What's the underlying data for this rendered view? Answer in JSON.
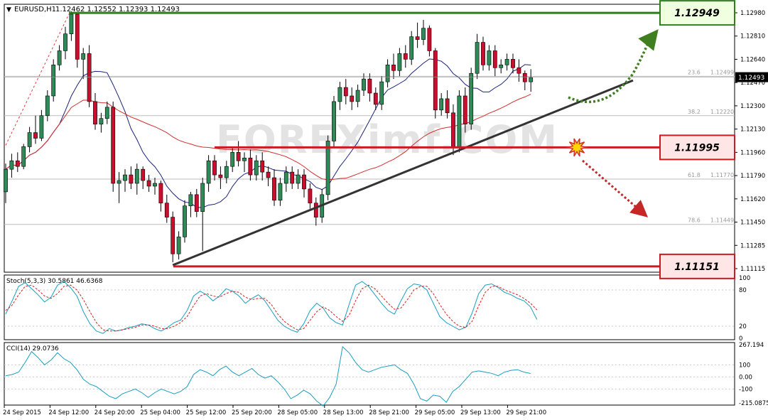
{
  "header": {
    "symbol": "EURUSD,H1",
    "ohlc": "1.12462 1.12552 1.12393 1.12493"
  },
  "levels": [
    {
      "label": "1.12949",
      "value": 1.12949,
      "color": "#2f7f1f",
      "fill": "#f0ffe0"
    },
    {
      "label": "1.11995",
      "value": 1.11995,
      "color": "#cc1a22",
      "fill": "#ffe6e6"
    },
    {
      "label": "1.11151",
      "value": 1.11151,
      "color": "#cc1a22",
      "fill": "#ffe6e6"
    }
  ],
  "fibonacci": [
    {
      "ratio": "23.6",
      "price": "1.12499",
      "value": 1.12499
    },
    {
      "ratio": "38.2",
      "price": "1.12220",
      "value": 1.1222
    },
    {
      "ratio": "61.8",
      "price": "1.11770",
      "value": 1.1177
    },
    {
      "ratio": "78.6",
      "price": "1.11449",
      "value": 1.11449
    }
  ],
  "watermark": "FOREXimf.COM",
  "chart_data": [
    {
      "type": "candlestick",
      "title": "EURUSD,H1",
      "ylim": [
        1.1111,
        1.1301
      ],
      "y_ticks": [
        "1.12980",
        "1.12810",
        "1.12640",
        "1.12470",
        "1.12300",
        "1.12130",
        "1.11960",
        "1.11790",
        "1.11620",
        "1.11450",
        "1.11285",
        "1.11115"
      ],
      "current_price": "1.12493",
      "x_tick_labels": [
        "24 Sep 2015",
        "24 Sep 12:00",
        "24 Sep 20:00",
        "25 Sep 04:00",
        "25 Sep 12:00",
        "25 Sep 20:00",
        "28 Sep 05:00",
        "28 Sep 13:00",
        "28 Sep 21:00",
        "29 Sep 05:00",
        "29 Sep 13:00",
        "29 Sep 21:00"
      ],
      "candles": [
        [
          1.1168,
          1.1188,
          1.116,
          1.1184
        ],
        [
          1.1184,
          1.1195,
          1.1178,
          1.119
        ],
        [
          1.119,
          1.1196,
          1.1182,
          1.1186
        ],
        [
          1.1186,
          1.1202,
          1.1184,
          1.12
        ],
        [
          1.12,
          1.1214,
          1.1196,
          1.121
        ],
        [
          1.121,
          1.1222,
          1.1202,
          1.1206
        ],
        [
          1.1206,
          1.1226,
          1.1204,
          1.1222
        ],
        [
          1.1222,
          1.124,
          1.1218,
          1.1236
        ],
        [
          1.1236,
          1.1262,
          1.1232,
          1.1258
        ],
        [
          1.1258,
          1.1272,
          1.1254,
          1.1268
        ],
        [
          1.1268,
          1.1285,
          1.1262,
          1.128
        ],
        [
          1.128,
          1.1296,
          1.1275,
          1.1294
        ],
        [
          1.1294,
          1.1295,
          1.1256,
          1.1262
        ],
        [
          1.1262,
          1.127,
          1.1248,
          1.1266
        ],
        [
          1.1266,
          1.1272,
          1.1228,
          1.1232
        ],
        [
          1.1232,
          1.1238,
          1.1212,
          1.1216
        ],
        [
          1.1216,
          1.1224,
          1.121,
          1.122
        ],
        [
          1.122,
          1.1232,
          1.1216,
          1.1228
        ],
        [
          1.1228,
          1.1232,
          1.1168,
          1.1174
        ],
        [
          1.1174,
          1.1182,
          1.116,
          1.1176
        ],
        [
          1.1176,
          1.1184,
          1.1168,
          1.118
        ],
        [
          1.118,
          1.1186,
          1.117,
          1.1174
        ],
        [
          1.1174,
          1.1188,
          1.1166,
          1.1184
        ],
        [
          1.1184,
          1.1186,
          1.117,
          1.1176
        ],
        [
          1.1176,
          1.118,
          1.1168,
          1.1172
        ],
        [
          1.1172,
          1.1178,
          1.1166,
          1.1174
        ],
        [
          1.1174,
          1.1176,
          1.1154,
          1.116
        ],
        [
          1.116,
          1.1166,
          1.1146,
          1.115
        ],
        [
          1.115,
          1.1154,
          1.1118,
          1.1124
        ],
        [
          1.1124,
          1.114,
          1.112,
          1.1136
        ],
        [
          1.1136,
          1.1162,
          1.1132,
          1.1158
        ],
        [
          1.1158,
          1.1168,
          1.115,
          1.1166
        ],
        [
          1.1166,
          1.117,
          1.115,
          1.1154
        ],
        [
          1.1154,
          1.1178,
          1.1126,
          1.1174
        ],
        [
          1.1174,
          1.1194,
          1.1168,
          1.119
        ],
        [
          1.119,
          1.1194,
          1.1176,
          1.118
        ],
        [
          1.118,
          1.1186,
          1.117,
          1.1178
        ],
        [
          1.1178,
          1.119,
          1.1174,
          1.1186
        ],
        [
          1.1186,
          1.12,
          1.1182,
          1.1196
        ],
        [
          1.1196,
          1.1204,
          1.1186,
          1.119
        ],
        [
          1.119,
          1.1196,
          1.1182,
          1.1192
        ],
        [
          1.1192,
          1.1198,
          1.1176,
          1.118
        ],
        [
          1.118,
          1.1194,
          1.1176,
          1.119
        ],
        [
          1.119,
          1.1196,
          1.1176,
          1.1182
        ],
        [
          1.1182,
          1.1186,
          1.1172,
          1.1178
        ],
        [
          1.1178,
          1.1184,
          1.1158,
          1.1162
        ],
        [
          1.1162,
          1.1178,
          1.1158,
          1.1174
        ],
        [
          1.1174,
          1.1186,
          1.1168,
          1.1182
        ],
        [
          1.1182,
          1.1186,
          1.117,
          1.1174
        ],
        [
          1.1174,
          1.1184,
          1.117,
          1.118
        ],
        [
          1.118,
          1.1184,
          1.1164,
          1.117
        ],
        [
          1.117,
          1.1174,
          1.1156,
          1.116
        ],
        [
          1.116,
          1.1164,
          1.1144,
          1.115
        ],
        [
          1.115,
          1.117,
          1.1146,
          1.1166
        ],
        [
          1.1166,
          1.1208,
          1.1162,
          1.1204
        ],
        [
          1.1204,
          1.1236,
          1.12,
          1.1232
        ],
        [
          1.1232,
          1.1246,
          1.1226,
          1.1242
        ],
        [
          1.1242,
          1.1248,
          1.123,
          1.1236
        ],
        [
          1.1236,
          1.1242,
          1.1226,
          1.1232
        ],
        [
          1.1232,
          1.1244,
          1.1228,
          1.124
        ],
        [
          1.124,
          1.1252,
          1.1236,
          1.1248
        ],
        [
          1.1248,
          1.1252,
          1.1232,
          1.1238
        ],
        [
          1.1238,
          1.1242,
          1.1226,
          1.123
        ],
        [
          1.123,
          1.125,
          1.1226,
          1.1246
        ],
        [
          1.1246,
          1.1262,
          1.1242,
          1.1258
        ],
        [
          1.1258,
          1.1266,
          1.1248,
          1.1254
        ],
        [
          1.1254,
          1.127,
          1.125,
          1.1266
        ],
        [
          1.1266,
          1.1272,
          1.1256,
          1.1262
        ],
        [
          1.1262,
          1.1282,
          1.1258,
          1.1278
        ],
        [
          1.1278,
          1.1288,
          1.127,
          1.1276
        ],
        [
          1.1276,
          1.129,
          1.1272,
          1.1284
        ],
        [
          1.1284,
          1.1286,
          1.1264,
          1.1268
        ],
        [
          1.1268,
          1.127,
          1.122,
          1.1226
        ],
        [
          1.1226,
          1.1238,
          1.1222,
          1.1234
        ],
        [
          1.1234,
          1.124,
          1.122,
          1.1224
        ],
        [
          1.1224,
          1.123,
          1.1194,
          1.12
        ],
        [
          1.12,
          1.124,
          1.1196,
          1.1236
        ],
        [
          1.1236,
          1.1242,
          1.121,
          1.1216
        ],
        [
          1.1216,
          1.1256,
          1.1212,
          1.1252
        ],
        [
          1.1252,
          1.128,
          1.1248,
          1.1274
        ],
        [
          1.1274,
          1.1278,
          1.1254,
          1.1258
        ],
        [
          1.1258,
          1.1272,
          1.1254,
          1.1268
        ],
        [
          1.1268,
          1.1272,
          1.125,
          1.1256
        ],
        [
          1.1256,
          1.1262,
          1.1252,
          1.1258
        ],
        [
          1.1258,
          1.1266,
          1.1254,
          1.1262
        ],
        [
          1.1262,
          1.1266,
          1.1252,
          1.1256
        ],
        [
          1.1256,
          1.1262,
          1.1246,
          1.1252
        ],
        [
          1.1252,
          1.1254,
          1.124,
          1.1246
        ],
        [
          1.1246,
          1.1255,
          1.1239,
          1.1249
        ]
      ],
      "indicators": [
        "MA fast (blue)",
        "MA slow (red)"
      ]
    },
    {
      "type": "line",
      "title": "Stoch(5,3,3) 30.5861 46.6368",
      "ylim": [
        0,
        100
      ],
      "y_ticks": [
        "100",
        "80",
        "20",
        "0"
      ],
      "series": [
        {
          "name": "Stoch %K",
          "color": "#1a9ec0",
          "values": [
            40,
            62,
            86,
            92,
            82,
            72,
            60,
            68,
            88,
            94,
            84,
            70,
            44,
            24,
            12,
            8,
            16,
            12,
            14,
            18,
            20,
            24,
            22,
            16,
            12,
            18,
            26,
            30,
            46,
            70,
            78,
            72,
            62,
            70,
            82,
            78,
            70,
            58,
            66,
            72,
            62,
            46,
            30,
            20,
            14,
            10,
            24,
            46,
            58,
            50,
            34,
            26,
            22,
            56,
            88,
            94,
            86,
            72,
            58,
            46,
            40,
            62,
            82,
            90,
            88,
            80,
            58,
            36,
            26,
            20,
            14,
            18,
            42,
            74,
            88,
            90,
            84,
            76,
            72,
            66,
            62,
            52,
            31
          ]
        },
        {
          "name": "Stoch %D",
          "color": "#d42020",
          "values": [
            46,
            55,
            72,
            86,
            88,
            80,
            70,
            66,
            74,
            86,
            88,
            80,
            64,
            44,
            26,
            14,
            12,
            12,
            14,
            16,
            18,
            22,
            22,
            20,
            16,
            16,
            20,
            26,
            36,
            54,
            70,
            74,
            70,
            68,
            74,
            78,
            76,
            68,
            64,
            66,
            66,
            56,
            40,
            28,
            20,
            14,
            16,
            30,
            44,
            52,
            46,
            36,
            28,
            38,
            62,
            82,
            88,
            82,
            70,
            58,
            48,
            50,
            64,
            80,
            86,
            86,
            74,
            56,
            40,
            28,
            20,
            18,
            28,
            54,
            76,
            86,
            86,
            80,
            76,
            72,
            66,
            58,
            47
          ]
        }
      ]
    },
    {
      "type": "line",
      "title": "CCI(14) 29.0736",
      "ylim": [
        -215.0875,
        267.194
      ],
      "y_ticks": [
        "267.194",
        "100",
        "0.00",
        "-100",
        "-215.0875"
      ],
      "series": [
        {
          "name": "CCI(14)",
          "color": "#1a9ec0",
          "values": [
            10,
            20,
            40,
            120,
            210,
            160,
            100,
            140,
            200,
            150,
            120,
            60,
            -20,
            -60,
            -80,
            -120,
            -160,
            -180,
            -140,
            -120,
            -100,
            -130,
            -170,
            -130,
            -100,
            -120,
            -140,
            -120,
            -80,
            20,
            60,
            40,
            10,
            60,
            90,
            40,
            10,
            40,
            70,
            20,
            -10,
            10,
            -40,
            -100,
            -180,
            -150,
            -110,
            -140,
            -200,
            -240,
            -170,
            -60,
            250,
            200,
            120,
            60,
            40,
            60,
            80,
            90,
            100,
            60,
            30,
            -60,
            -180,
            -200,
            -150,
            -160,
            -210,
            -120,
            -80,
            -20,
            40,
            50,
            40,
            30,
            10,
            40,
            55,
            60,
            40,
            29
          ]
        }
      ]
    }
  ]
}
